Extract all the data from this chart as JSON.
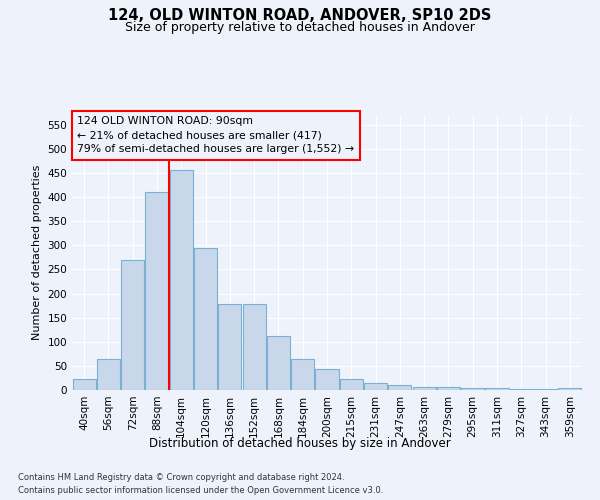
{
  "title1": "124, OLD WINTON ROAD, ANDOVER, SP10 2DS",
  "title2": "Size of property relative to detached houses in Andover",
  "xlabel": "Distribution of detached houses by size in Andover",
  "ylabel": "Number of detached properties",
  "categories": [
    "40sqm",
    "56sqm",
    "72sqm",
    "88sqm",
    "104sqm",
    "120sqm",
    "136sqm",
    "152sqm",
    "168sqm",
    "184sqm",
    "200sqm",
    "215sqm",
    "231sqm",
    "247sqm",
    "263sqm",
    "279sqm",
    "295sqm",
    "311sqm",
    "327sqm",
    "343sqm",
    "359sqm"
  ],
  "values": [
    22,
    65,
    270,
    410,
    455,
    295,
    178,
    178,
    112,
    65,
    43,
    22,
    14,
    11,
    7,
    6,
    5,
    4,
    3,
    2,
    4
  ],
  "bar_color": "#c8d8ea",
  "bar_edge_color": "#7bafd4",
  "annotation_title": "124 OLD WINTON ROAD: 90sqm",
  "annotation_line1": "← 21% of detached houses are smaller (417)",
  "annotation_line2": "79% of semi-detached houses are larger (1,552) →",
  "vline_color": "red",
  "vline_x": 3.5,
  "ylim": [
    0,
    570
  ],
  "yticks": [
    0,
    50,
    100,
    150,
    200,
    250,
    300,
    350,
    400,
    450,
    500,
    550
  ],
  "footnote1": "Contains HM Land Registry data © Crown copyright and database right 2024.",
  "footnote2": "Contains public sector information licensed under the Open Government Licence v3.0.",
  "bg_color": "#eef3fb",
  "grid_color": "#ffffff",
  "title1_fontsize": 10.5,
  "title2_fontsize": 9,
  "ylabel_fontsize": 8,
  "xlabel_fontsize": 8.5,
  "tick_fontsize": 7.5,
  "footnote_fontsize": 6.0
}
